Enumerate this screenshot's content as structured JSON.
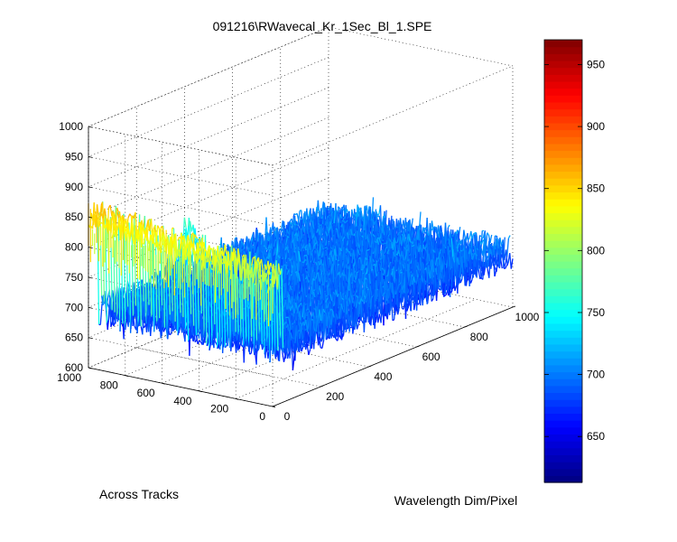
{
  "chart_data": {
    "type": "surface",
    "title": "091216\\RWavecal_Kr_1Sec_Bl_1.SPE",
    "xlabel": "Wavelength Dim/Pixel",
    "ylabel": "Across Tracks",
    "zlabel": "",
    "xlim": [
      0,
      1000
    ],
    "ylim": [
      0,
      1000
    ],
    "zlim": [
      600,
      1000
    ],
    "x_ticks": [
      0,
      200,
      400,
      600,
      800,
      1000
    ],
    "y_ticks": [
      0,
      200,
      400,
      600,
      800,
      1000
    ],
    "z_ticks": [
      600,
      650,
      700,
      750,
      800,
      850,
      900,
      950,
      1000
    ],
    "grid": true,
    "colormap": "jet",
    "colorbar": {
      "range": [
        613,
        970
      ],
      "ticks": [
        650,
        700,
        750,
        800,
        850,
        900,
        950
      ]
    },
    "surface": {
      "hot_band_x_range": [
        0,
        40
      ],
      "hot_band_z_near_y0": 810,
      "hot_band_z_near_y1000": 850,
      "background_z": 690,
      "background_noise": 30,
      "peak": {
        "x": 400,
        "y": 1000,
        "z": 760
      }
    },
    "series": [
      {
        "points": [
          [
            0,
            0,
            810
          ],
          [
            40,
            0,
            805
          ],
          [
            41,
            0,
            685
          ],
          [
            1000,
            0,
            705
          ]
        ]
      },
      {
        "points": [
          [
            0,
            1000,
            855
          ],
          [
            40,
            1000,
            850
          ],
          [
            41,
            1000,
            690
          ],
          [
            400,
            1000,
            760
          ],
          [
            1000,
            1000,
            700
          ]
        ]
      }
    ]
  }
}
